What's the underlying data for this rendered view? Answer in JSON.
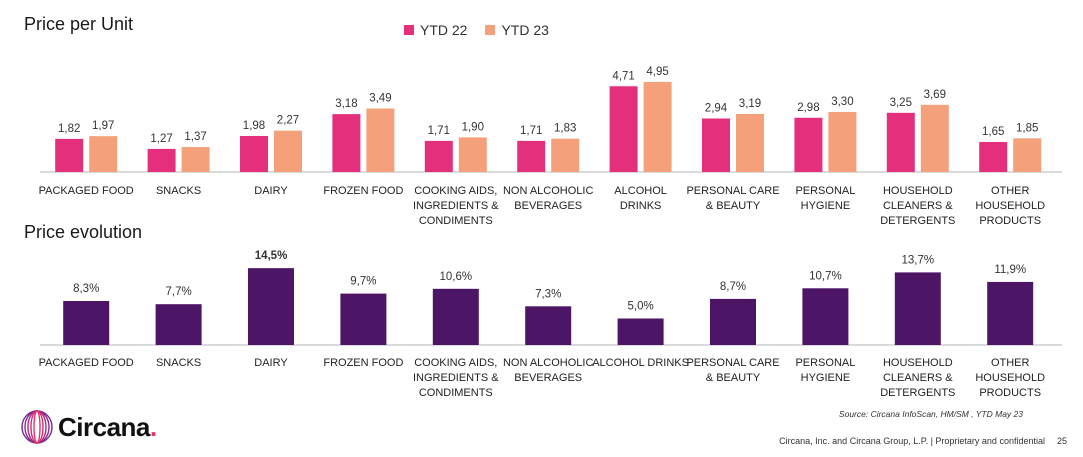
{
  "titles": {
    "top": "Price per Unit",
    "bottom": "Price evolution"
  },
  "legend": [
    {
      "label": "YTD 22",
      "color": "#e42f7c"
    },
    {
      "label": "YTD 23",
      "color": "#f4a07a"
    }
  ],
  "colors": {
    "ytd22": "#e42f7c",
    "ytd23": "#f4a07a",
    "evolution": "#4d1566",
    "axis": "#b5b5b5"
  },
  "chart_data": [
    {
      "type": "bar",
      "title": "Price per Unit",
      "categories": [
        [
          "PACKAGED FOOD"
        ],
        [
          "SNACKS"
        ],
        [
          "DAIRY"
        ],
        [
          "FROZEN FOOD"
        ],
        [
          "COOKING AIDS,",
          "INGREDIENTS &",
          "CONDIMENTS"
        ],
        [
          "NON ALCOHOLIC",
          "BEVERAGES"
        ],
        [
          "ALCOHOL",
          "DRINKS"
        ],
        [
          "PERSONAL CARE",
          "& BEAUTY"
        ],
        [
          "PERSONAL",
          "HYGIENE"
        ],
        [
          "HOUSEHOLD",
          "CLEANERS &",
          "DETERGENTS"
        ],
        [
          "OTHER",
          "HOUSEHOLD",
          "PRODUCTS"
        ]
      ],
      "series": [
        {
          "name": "YTD 22",
          "values": [
            1.82,
            1.27,
            1.98,
            3.18,
            1.71,
            1.71,
            4.71,
            2.94,
            2.98,
            3.25,
            1.65
          ],
          "labels": [
            "1,82",
            "1,27",
            "1,98",
            "3,18",
            "1,71",
            "1,71",
            "4,71",
            "2,94",
            "2,98",
            "3,25",
            "1,65"
          ]
        },
        {
          "name": "YTD 23",
          "values": [
            1.97,
            1.37,
            2.27,
            3.49,
            1.9,
            1.83,
            4.95,
            3.19,
            3.3,
            3.69,
            1.85
          ],
          "labels": [
            "1,97",
            "1,37",
            "2,27",
            "3,49",
            "1,90",
            "1,83",
            "4,95",
            "3,19",
            "3,30",
            "3,69",
            "1,85"
          ]
        }
      ],
      "ylim": [
        0,
        5.5
      ]
    },
    {
      "type": "bar",
      "title": "Price evolution",
      "categories": [
        [
          "PACKAGED FOOD"
        ],
        [
          "SNACKS"
        ],
        [
          "DAIRY"
        ],
        [
          "FROZEN FOOD"
        ],
        [
          "COOKING AIDS,",
          "INGREDIENTS &",
          "CONDIMENTS"
        ],
        [
          "NON ALCOHOLIC",
          "BEVERAGES"
        ],
        [
          "ALCOHOL DRINKS"
        ],
        [
          "PERSONAL CARE",
          "& BEAUTY"
        ],
        [
          "PERSONAL",
          "HYGIENE"
        ],
        [
          "HOUSEHOLD",
          "CLEANERS &",
          "DETERGENTS"
        ],
        [
          "OTHER",
          "HOUSEHOLD",
          "PRODUCTS"
        ]
      ],
      "values": [
        8.3,
        7.7,
        14.5,
        9.7,
        10.6,
        7.3,
        5.0,
        8.7,
        10.7,
        13.7,
        11.9
      ],
      "labels": [
        "8,3%",
        "7,7%",
        "14,5%",
        "9,7%",
        "10,6%",
        "7,3%",
        "5,0%",
        "8,7%",
        "10,7%",
        "13,7%",
        "11,9%"
      ],
      "highlight_index": 2,
      "ylim": [
        0,
        16
      ]
    }
  ],
  "source": "Source: Circana InfoScan, HM/SM , YTD May 23",
  "footer": {
    "company": "Circana, Inc. and Circana Group, L.P. | Proprietary and confidential",
    "page": "25"
  },
  "logo": {
    "name": "Circana",
    "dot": "."
  }
}
